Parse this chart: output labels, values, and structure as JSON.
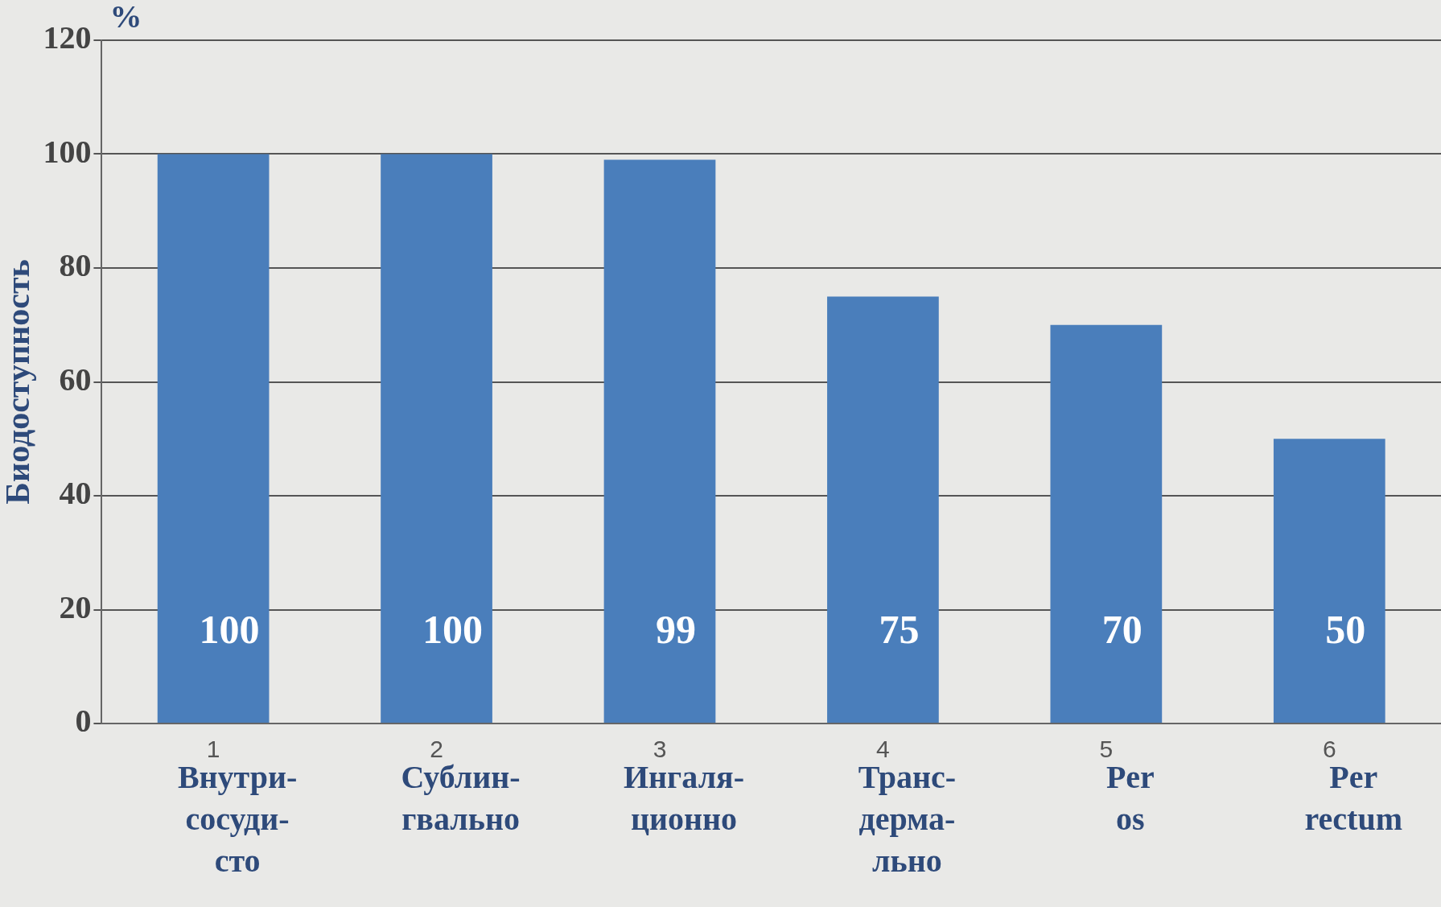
{
  "chart_data": {
    "type": "bar",
    "ylabel": "Биодоступность",
    "categories": [
      "1",
      "2",
      "3",
      "4",
      "5",
      "6"
    ],
    "values": [
      100,
      100,
      99,
      75,
      70,
      50
    ],
    "color": "#4a7ebb",
    "ylim": [
      0,
      120
    ],
    "yticks": [
      0,
      20,
      40,
      60,
      80,
      100,
      120
    ],
    "grid": "y",
    "data_labels": true,
    "legend": false,
    "annotations": [
      "%",
      "Внутри-\nсосуди-\nсто",
      "Сублин-\nгвально",
      "Ингаля-\nционно",
      "Транс-\nдерма-\nльно",
      "Per\nos",
      "Per\nrectum"
    ]
  }
}
